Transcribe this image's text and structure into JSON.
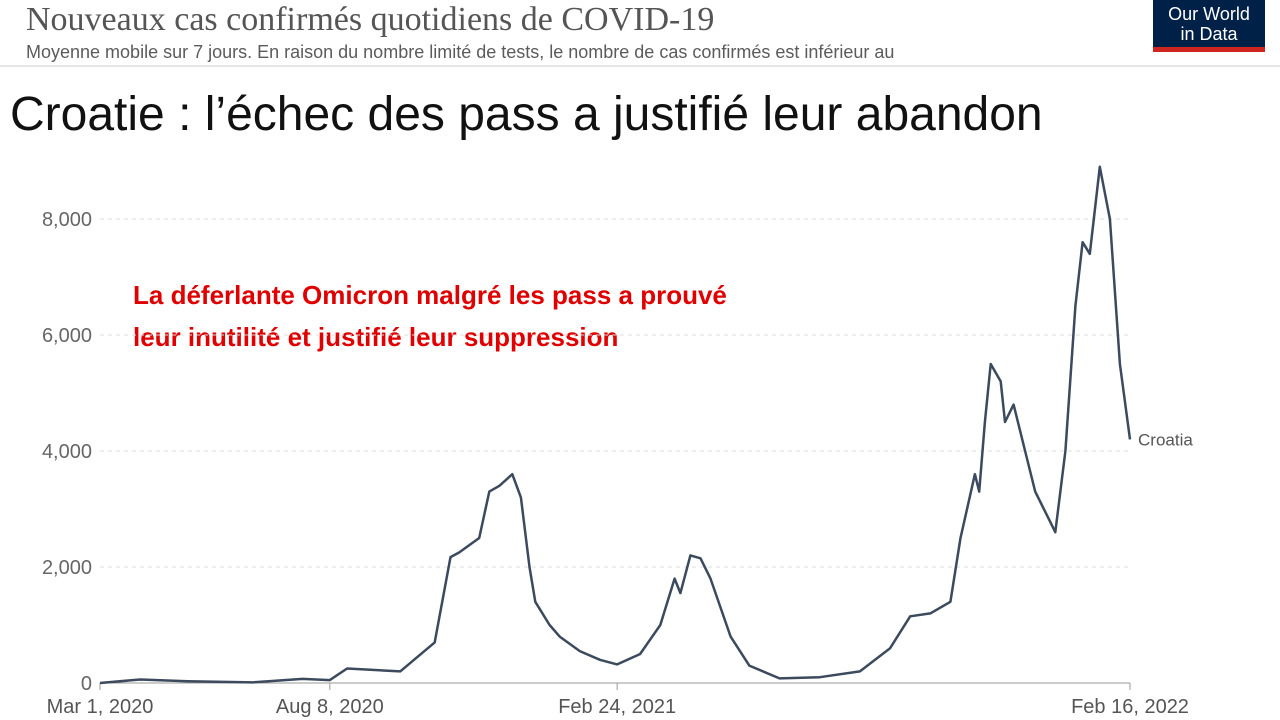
{
  "slide_title": "Croatie : l’échec  des pass a justifié leur abandon",
  "logo": [
    "Our World",
    "in Data"
  ],
  "chart_data": {
    "type": "line",
    "title": "Nouveaux cas confirmés quotidiens de COVID-19",
    "subtitle": "Moyenne mobile sur 7 jours. En raison du nombre limité de tests, le nombre de cas confirmés est inférieur au",
    "annotation": [
      "La déferlante Omicron malgré les pass a prouvé",
      "leur inutilité et justifié leur suppression"
    ],
    "x": [
      "2020-03-01",
      "2020-03-29",
      "2020-05-01",
      "2020-06-15",
      "2020-07-20",
      "2020-08-08",
      "2020-08-20",
      "2020-09-26",
      "2020-10-20",
      "2020-10-31",
      "2020-11-06",
      "2020-11-20",
      "2020-11-27",
      "2020-12-04",
      "2020-12-13",
      "2020-12-19",
      "2020-12-25",
      "2020-12-29",
      "2021-01-08",
      "2021-01-15",
      "2021-01-29",
      "2021-02-12",
      "2021-02-24",
      "2021-03-12",
      "2021-03-26",
      "2021-04-05",
      "2021-04-09",
      "2021-04-16",
      "2021-04-23",
      "2021-04-30",
      "2021-05-14",
      "2021-05-27",
      "2021-06-17",
      "2021-07-15",
      "2021-08-12",
      "2021-09-02",
      "2021-09-16",
      "2021-09-30",
      "2021-10-14",
      "2021-10-21",
      "2021-10-31",
      "2021-11-03",
      "2021-11-07",
      "2021-11-11",
      "2021-11-18",
      "2021-11-21",
      "2021-11-27",
      "2021-12-05",
      "2021-12-12",
      "2021-12-22",
      "2021-12-26",
      "2022-01-02",
      "2022-01-09",
      "2022-01-14",
      "2022-01-19",
      "2022-01-26",
      "2022-02-02",
      "2022-02-09",
      "2022-02-16"
    ],
    "series": [
      {
        "name": "Croatia",
        "color": "#3c4a5e",
        "values": [
          0,
          60,
          30,
          10,
          70,
          50,
          250,
          200,
          700,
          2170,
          2250,
          2500,
          3300,
          3400,
          3600,
          3200,
          2000,
          1400,
          1000,
          800,
          550,
          400,
          320,
          500,
          1000,
          1800,
          1550,
          2200,
          2150,
          1800,
          800,
          300,
          80,
          100,
          200,
          600,
          1150,
          1200,
          1400,
          2500,
          3600,
          3300,
          4500,
          5500,
          5200,
          4500,
          4800,
          4000,
          3300,
          2800,
          2600,
          4000,
          6500,
          7600,
          7400,
          8900,
          8000,
          5500,
          4200
        ]
      }
    ],
    "xlim": [
      "2020-03-01",
      "2022-02-16"
    ],
    "xticks": [
      {
        "value": "2020-03-01",
        "label": "Mar 1, 2020"
      },
      {
        "value": "2020-08-08",
        "label": "Aug 8, 2020"
      },
      {
        "value": "2021-02-24",
        "label": "Feb 24, 2021"
      },
      {
        "value": "2022-02-16",
        "label": "Feb 16, 2022"
      }
    ],
    "ylim": [
      0,
      9000
    ],
    "yticks": [
      0,
      {
        "value": 2000,
        "label": "2,000"
      },
      {
        "value": 4000,
        "label": "4,000"
      },
      {
        "value": 6000,
        "label": "6,000"
      },
      {
        "value": 8000,
        "label": "8,000"
      }
    ],
    "grid": true
  }
}
